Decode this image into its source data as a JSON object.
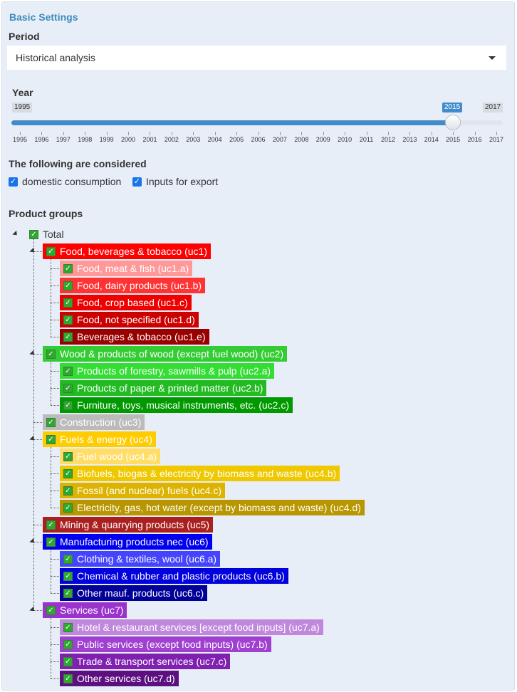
{
  "panel_title": "Basic Settings",
  "period": {
    "label": "Period",
    "selected": "Historical analysis"
  },
  "year": {
    "label": "Year",
    "min": 1995,
    "max": 2017,
    "value": 2015,
    "min_label": "1995",
    "max_label": "2017",
    "value_label": "2015",
    "ticks": [
      "1995",
      "1996",
      "1997",
      "1998",
      "1999",
      "2000",
      "2001",
      "2002",
      "2003",
      "2004",
      "2005",
      "2006",
      "2007",
      "2008",
      "2009",
      "2010",
      "2011",
      "2012",
      "2013",
      "2014",
      "2015",
      "2016",
      "2017"
    ]
  },
  "considered": {
    "label": "The following are considered",
    "options": [
      "domestic consumption",
      "Inputs for export"
    ]
  },
  "product_groups": {
    "label": "Product groups",
    "root": "Total",
    "nodes": [
      {
        "text": "Food, beverages & tobacco (uc1)",
        "bg": "#ff0000",
        "fg": "#ffffff",
        "level": 1
      },
      {
        "text": "Food, meat & fish (uc1.a)",
        "bg": "#ff9999",
        "fg": "#ffffff",
        "level": 2
      },
      {
        "text": "Food, dairy products (uc1.b)",
        "bg": "#ff3333",
        "fg": "#ffffff",
        "level": 2
      },
      {
        "text": "Food, crop based (uc1.c)",
        "bg": "#ee0000",
        "fg": "#ffffff",
        "level": 2
      },
      {
        "text": "Food, not specified (uc1.d)",
        "bg": "#cc0000",
        "fg": "#ffffff",
        "level": 2
      },
      {
        "text": "Beverages & tobacco (uc1.e)",
        "bg": "#990000",
        "fg": "#ffffff",
        "level": 2
      },
      {
        "text": "Wood & products of wood (except fuel wood) (uc2)",
        "bg": "#33cc33",
        "fg": "#ffffff",
        "level": 1
      },
      {
        "text": "Products of forestry, sawmills & pulp (uc2.a)",
        "bg": "#33dd33",
        "fg": "#ffffff",
        "level": 2
      },
      {
        "text": "Products of paper & printed matter (uc2.b)",
        "bg": "#22bb22",
        "fg": "#ffffff",
        "level": 2
      },
      {
        "text": "Furniture, toys, musical instruments, etc. (uc2.c)",
        "bg": "#009900",
        "fg": "#ffffff",
        "level": 2
      },
      {
        "text": "Construction (uc3)",
        "bg": "#bbbbbb",
        "fg": "#ffffff",
        "level": 1
      },
      {
        "text": "Fuels & energy (uc4)",
        "bg": "#ffcc00",
        "fg": "#ffffff",
        "level": 1
      },
      {
        "text": "Fuel wood (uc4.a)",
        "bg": "#ffdd66",
        "fg": "#ffffff",
        "level": 2
      },
      {
        "text": "Biofuels, biogas & electricity by biomass and waste (uc4.b)",
        "bg": "#f0c800",
        "fg": "#ffffff",
        "level": 2
      },
      {
        "text": "Fossil (and nuclear) fuels (uc4.c)",
        "bg": "#ddb300",
        "fg": "#ffffff",
        "level": 2
      },
      {
        "text": "Electricity, gas, hot water (except by biomass and waste) (uc4.d)",
        "bg": "#b89600",
        "fg": "#ffffff",
        "level": 2
      },
      {
        "text": "Mining & quarrying products (uc5)",
        "bg": "#aa1f1f",
        "fg": "#ffffff",
        "level": 1
      },
      {
        "text": "Manufacturing products nec (uc6)",
        "bg": "#0000ee",
        "fg": "#ffffff",
        "level": 1
      },
      {
        "text": "Clothing & textiles, wool (uc6.a)",
        "bg": "#4444ff",
        "fg": "#ffffff",
        "level": 2
      },
      {
        "text": "Chemical & rubber and plastic products (uc6.b)",
        "bg": "#0000dd",
        "fg": "#ffffff",
        "level": 2
      },
      {
        "text": "Other mauf. products (uc6.c)",
        "bg": "#000099",
        "fg": "#ffffff",
        "level": 2
      },
      {
        "text": "Services (uc7)",
        "bg": "#9933cc",
        "fg": "#ffffff",
        "level": 1
      },
      {
        "text": "Hotel & restaurant services [except food inputs] (uc7.a)",
        "bg": "#c088dd",
        "fg": "#ffffff",
        "level": 2
      },
      {
        "text": "Public services (except food inputs) (uc7.b)",
        "bg": "#a040d0",
        "fg": "#ffffff",
        "level": 2
      },
      {
        "text": "Trade & transport services (uc7.c)",
        "bg": "#8020b0",
        "fg": "#ffffff",
        "level": 2
      },
      {
        "text": "Other services (uc7.d)",
        "bg": "#5c1080",
        "fg": "#ffffff",
        "level": 2
      }
    ]
  }
}
